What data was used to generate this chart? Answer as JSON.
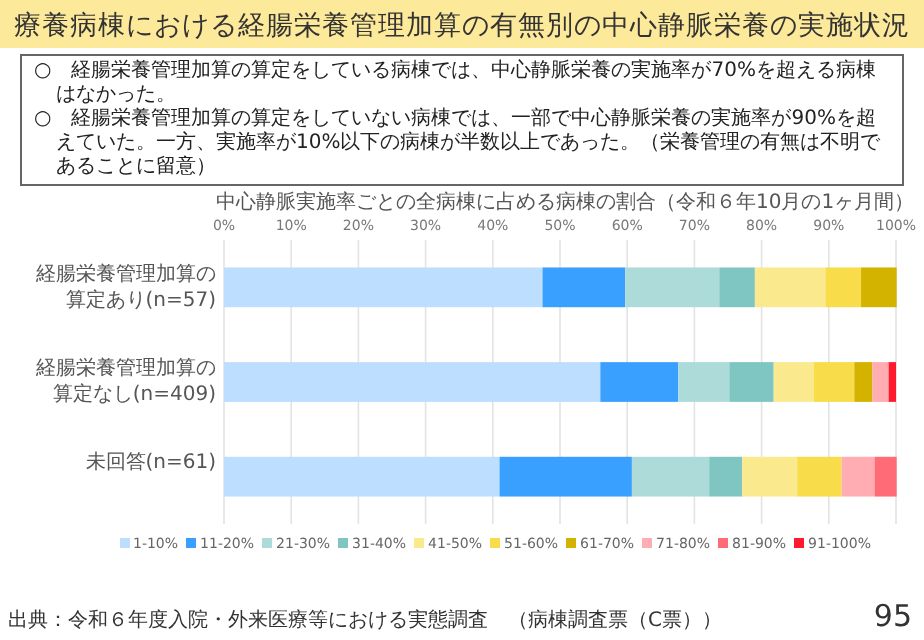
{
  "chart_data": {
    "type": "bar",
    "orientation": "horizontal",
    "stacked": true,
    "title": "療養病棟における経腸栄養管理加算の有無別の中心静脈栄養の実施状況",
    "subtitle": "中心静脈実施率ごとの全病棟に占める病棟の割合（令和６年10月の1ヶ月間）",
    "annotations": [
      "○　経腸栄養管理加算の算定をしている病棟では、中心静脈栄養の実施率が70%を超える病棟はなかった。",
      "○　経腸栄養管理加算の算定をしていない病棟では、一部で中心静脈栄養の実施率が90%を超えていた。一方、実施率が10%以下の病棟が半数以上であった。（栄養管理の有無は不明であることに留意）",
      "出典：令和６年度入院・外来医療等における実態調査　（病棟調査票（C票））",
      "95"
    ],
    "categories": [
      "経腸栄養管理加算の算定あり(n=57)",
      "経腸栄養管理加算の算定なし(n=409)",
      "未回答(n=61)"
    ],
    "series": [
      {
        "name": "1-10%",
        "color": "#bddeff",
        "values": [
          47.4,
          56.0,
          41.0
        ]
      },
      {
        "name": "11-20%",
        "color": "#3aa0ff",
        "values": [
          12.3,
          11.6,
          19.7
        ]
      },
      {
        "name": "21-30%",
        "color": "#acdbd9",
        "values": [
          14.0,
          7.6,
          11.5
        ]
      },
      {
        "name": "31-40%",
        "color": "#7fc6c3",
        "values": [
          5.3,
          6.6,
          4.9
        ]
      },
      {
        "name": "41-50%",
        "color": "#fbe98e",
        "values": [
          10.5,
          6.0,
          8.2
        ]
      },
      {
        "name": "51-60%",
        "color": "#f8dc4a",
        "values": [
          5.3,
          6.0,
          6.6
        ]
      },
      {
        "name": "61-70%",
        "color": "#d4b200",
        "values": [
          5.3,
          2.7,
          0
        ]
      },
      {
        "name": "71-80%",
        "color": "#ffadb2",
        "values": [
          0,
          2.4,
          4.9
        ]
      },
      {
        "name": "81-90%",
        "color": "#ff6b77",
        "values": [
          0,
          0,
          3.3
        ]
      },
      {
        "name": "91-100%",
        "color": "#ff1a2e",
        "values": [
          0,
          1.1,
          0
        ]
      }
    ],
    "xlim": [
      0,
      100
    ],
    "xticks": [
      {
        "value": 0,
        "label": "0%"
      },
      {
        "value": 10,
        "label": "10%"
      },
      {
        "value": 20,
        "label": "20%"
      },
      {
        "value": 30,
        "label": "30%"
      },
      {
        "value": 40,
        "label": "40%"
      },
      {
        "value": 50,
        "label": "50%"
      },
      {
        "value": 60,
        "label": "60%"
      },
      {
        "value": 70,
        "label": "70%"
      },
      {
        "value": 80,
        "label": "80%"
      },
      {
        "value": 90,
        "label": "90%"
      },
      {
        "value": 100,
        "label": "100%"
      }
    ],
    "grid": "x",
    "legend": "bottom"
  }
}
